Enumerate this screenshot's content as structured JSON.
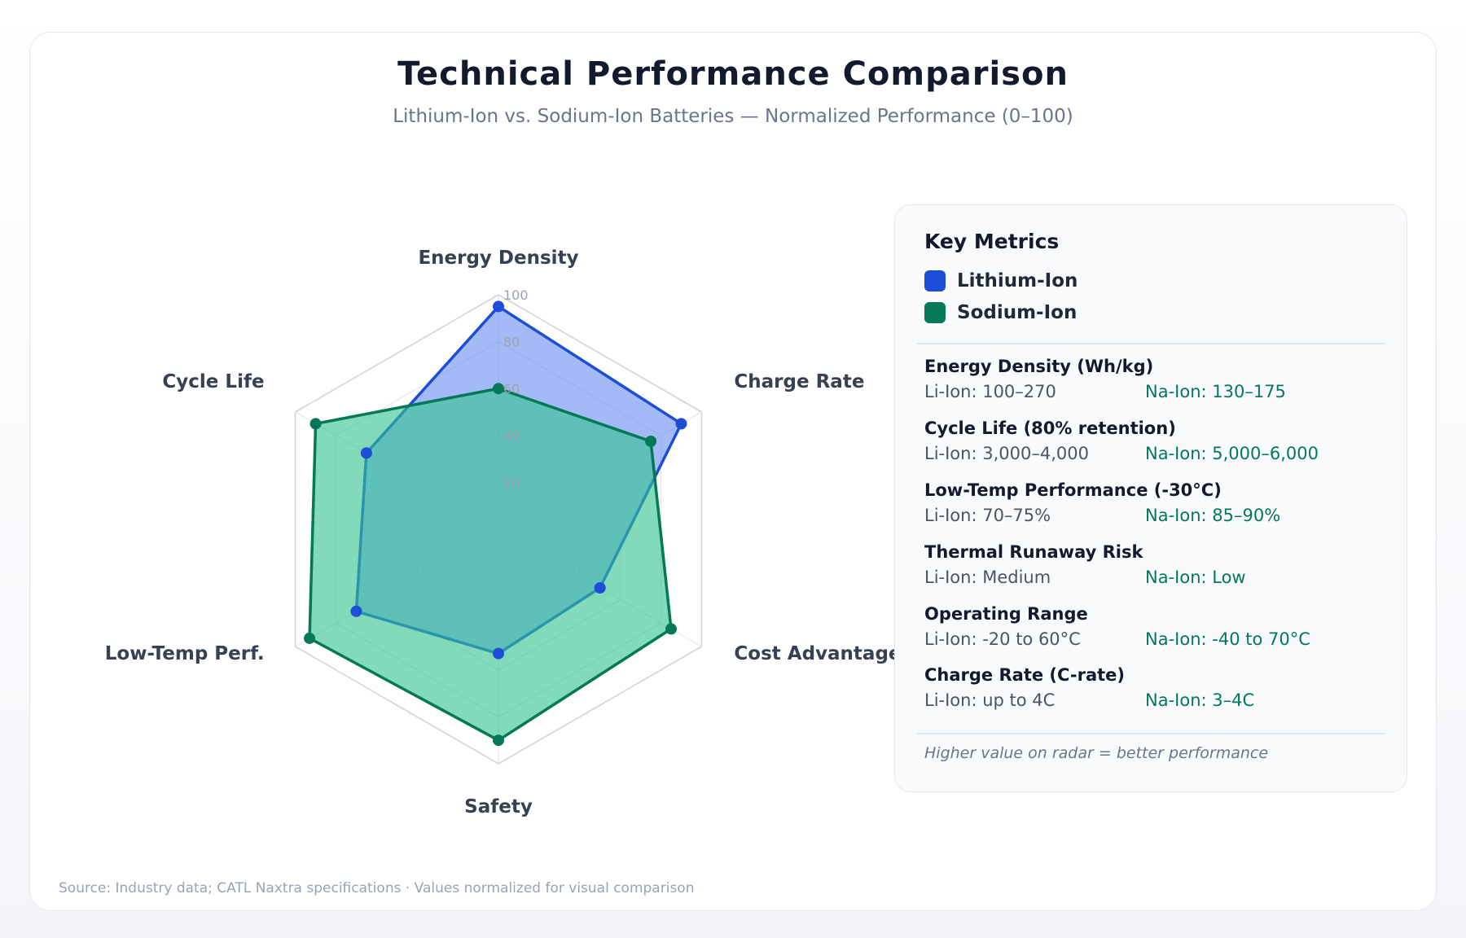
{
  "header": {
    "title": "Technical Performance Comparison",
    "subtitle": "Lithium-Ion vs. Sodium-Ion Batteries — Normalized Performance (0–100)"
  },
  "chart_data": {
    "type": "radar",
    "axes": [
      "Energy Density",
      "Charge Rate",
      "Cost Advantage",
      "Safety",
      "Low-Temp Perf.",
      "Cycle Life"
    ],
    "ticks": [
      "20",
      "40",
      "60",
      "80",
      "100"
    ],
    "range": [
      0,
      100
    ],
    "series": [
      {
        "name": "Lithium-Ion",
        "color": "#1d4ed8",
        "fill": "#6b8ff0",
        "values": [
          95,
          90,
          50,
          53,
          70,
          65
        ]
      },
      {
        "name": "Sodium-Ion",
        "color": "#047857",
        "fill": "#34c48f",
        "values": [
          60,
          75,
          85,
          90,
          93,
          90
        ]
      }
    ],
    "grid": true,
    "legend": "right-panel"
  },
  "panel": {
    "title": "Key Metrics",
    "legend": [
      {
        "label": "Lithium-Ion",
        "color": "#1d4ed8"
      },
      {
        "label": "Sodium-Ion",
        "color": "#047857"
      }
    ],
    "metrics": [
      {
        "name": "Energy Density (Wh/kg)",
        "li": "Li-Ion: 100–270",
        "na": "Na-Ion: 130–175"
      },
      {
        "name": "Cycle Life (80% retention)",
        "li": "Li-Ion: 3,000–4,000",
        "na": "Na-Ion: 5,000–6,000"
      },
      {
        "name": "Low-Temp Performance (-30°C)",
        "li": "Li-Ion: 70–75%",
        "na": "Na-Ion: 85–90%"
      },
      {
        "name": "Thermal Runaway Risk",
        "li": "Li-Ion: Medium",
        "na": "Na-Ion: Low"
      },
      {
        "name": "Operating Range",
        "li": "Li-Ion: -20 to 60°C",
        "na": "Na-Ion: -40 to 70°C"
      },
      {
        "name": "Charge Rate (C-rate)",
        "li": "Li-Ion: up to 4C",
        "na": "Na-Ion: 3–4C"
      }
    ],
    "note": "Higher value on radar = better performance"
  },
  "footer": {
    "source": "Source: Industry data; CATL Naxtra specifications · Values normalized for visual comparison"
  }
}
